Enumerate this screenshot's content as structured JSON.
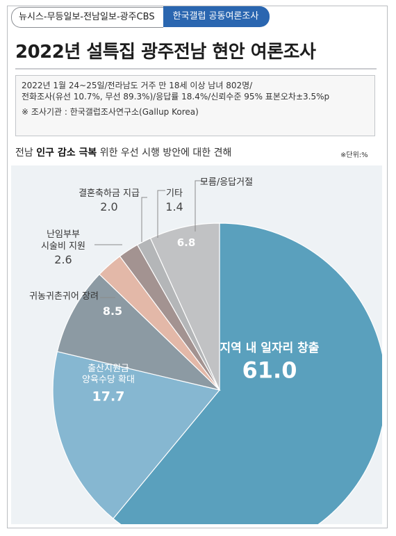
{
  "header": {
    "tag_left": "뉴시스-무등일보-전남일보-광주CBS",
    "tag_right": "한국갤럽 공동여론조사"
  },
  "title": "2022년 설특집 광주전남 현안 여론조사",
  "info": {
    "line1": "2022년 1월 24~25일/전라남도 거주 만 18세 이상 남녀 802명/",
    "line2": "전화조사(유선 10.7%, 무선 89.3%)/응답률 18.4%/신뢰수준 95% 표본오차±3.5%p",
    "source": "※ 조사기관 : 한국갤럽조사연구소(Gallup Korea)"
  },
  "subtitle": {
    "prefix": "전남 ",
    "bold": "인구 감소 극복",
    "suffix": " 위한 우선 시행 방안에 대한 견해"
  },
  "unit": "※단위:%",
  "chart_data": {
    "type": "pie",
    "title": "전남 인구 감소 극복 위한 우선 시행 방안에 대한 견해",
    "unit": "%",
    "slices": [
      {
        "label": "지역 내 일자리 창출",
        "lines": [
          "지역 내 일자리 창출"
        ],
        "value": 61.0,
        "color": "#5aa0bd",
        "text_color": "#ffffff"
      },
      {
        "label": "출산지원금 양육수당 확대",
        "lines": [
          "출산지원금",
          "양육수당 확대"
        ],
        "value": 17.7,
        "color": "#86b7d1",
        "text_color": "#ffffff"
      },
      {
        "label": "귀농귀촌귀어 장려",
        "lines": [
          "귀농귀촌귀어 장려"
        ],
        "value": 8.5,
        "color": "#8c9aa3",
        "text_color": "#ffffff"
      },
      {
        "label": "난임부부 시술비 지원",
        "lines": [
          "난임부부",
          "시술비 지원"
        ],
        "value": 2.6,
        "color": "#e3b8a8",
        "text_color": "#444444"
      },
      {
        "label": "결혼축하금 지급",
        "lines": [
          "결혼축하금 지급"
        ],
        "value": 2.0,
        "color": "#a39391",
        "text_color": "#444444"
      },
      {
        "label": "기타",
        "lines": [
          "기타"
        ],
        "value": 1.4,
        "color": "#b4b6b8",
        "text_color": "#444444"
      },
      {
        "label": "모름/응답거절",
        "lines": [
          "모름/응답거절"
        ],
        "value": 6.8,
        "color": "#c1c2c4",
        "text_color": "#ffffff"
      }
    ]
  }
}
